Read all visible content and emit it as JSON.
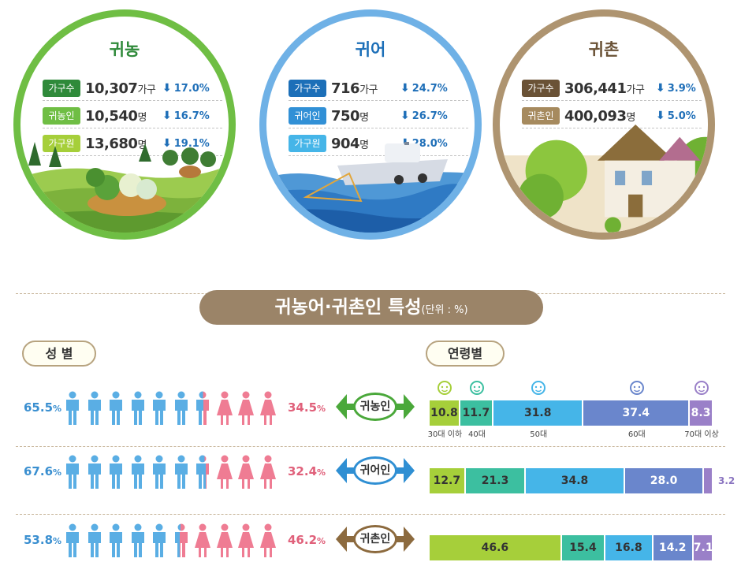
{
  "circles": {
    "farm": {
      "title": "귀농",
      "rows": [
        {
          "badge": "가구수",
          "value": "10,307",
          "unit": "가구",
          "change": "17.0%",
          "badge_color": "#2f8a3a"
        },
        {
          "badge": "귀농인",
          "value": "10,540",
          "unit": "명",
          "change": "16.7%",
          "badge_color": "#6fbe44"
        },
        {
          "badge": "가구원",
          "value": "13,680",
          "unit": "명",
          "change": "19.1%",
          "badge_color": "#a6cf3a"
        }
      ]
    },
    "fish": {
      "title": "귀어",
      "rows": [
        {
          "badge": "가구수",
          "value": "716",
          "unit": "가구",
          "change": "24.7%",
          "badge_color": "#1c6fb8"
        },
        {
          "badge": "귀어인",
          "value": "750",
          "unit": "명",
          "change": "26.7%",
          "badge_color": "#3190d6"
        },
        {
          "badge": "가구원",
          "value": "904",
          "unit": "명",
          "change": "28.0%",
          "badge_color": "#45b5e8"
        }
      ]
    },
    "village": {
      "title": "귀촌",
      "rows": [
        {
          "badge": "가구수",
          "value": "306,441",
          "unit": "가구",
          "change": "3.9%",
          "badge_color": "#6a5236"
        },
        {
          "badge": "귀촌인",
          "value": "400,093",
          "unit": "명",
          "change": "5.0%",
          "badge_color": "#a68a5e"
        }
      ]
    }
  },
  "section": {
    "title": "귀농어·귀촌인 특성",
    "unit": "(단위 : %)"
  },
  "labels": {
    "gender": "성  별",
    "age": "연령별"
  },
  "gender_rows": [
    {
      "tag": "귀농인",
      "male": "65.5",
      "female": "34.5",
      "male_ratio": 0.655,
      "tag_color": "#4aa83a"
    },
    {
      "tag": "귀어인",
      "male": "67.6",
      "female": "32.4",
      "male_ratio": 0.676,
      "tag_color": "#2f8fd3"
    },
    {
      "tag": "귀촌인",
      "male": "53.8",
      "female": "46.2",
      "male_ratio": 0.538,
      "tag_color": "#8c6a3e"
    }
  ],
  "percent_sign": "%",
  "age_labels": [
    "30대 이하",
    "40대",
    "50대",
    "60대",
    "70대 이상"
  ],
  "age_colors": [
    "#a6cf3a",
    "#3cbfa0",
    "#45b5e8",
    "#6a86cc",
    "#9a80c8"
  ],
  "chart_data": {
    "type": "bar",
    "categories": [
      "30대 이하",
      "40대",
      "50대",
      "60대",
      "70대 이상"
    ],
    "series": [
      {
        "name": "귀농인",
        "values": [
          10.8,
          11.7,
          31.8,
          37.4,
          8.3
        ]
      },
      {
        "name": "귀어인",
        "values": [
          12.7,
          21.3,
          34.8,
          28.0,
          3.2
        ]
      },
      {
        "name": "귀촌인",
        "values": [
          46.6,
          15.4,
          16.8,
          14.2,
          7.1
        ]
      }
    ],
    "stacked": true
  },
  "colors": {
    "male": "#5aaee4",
    "female": "#ef7c93"
  }
}
